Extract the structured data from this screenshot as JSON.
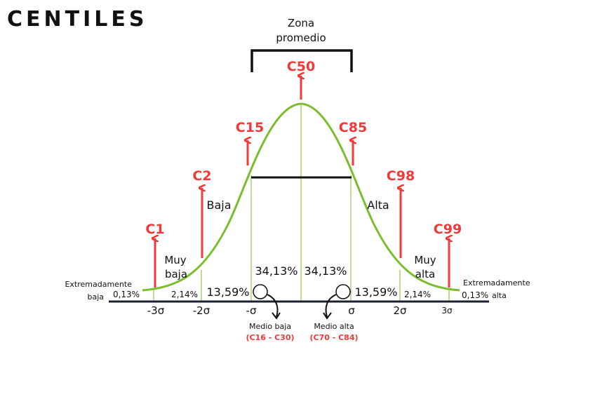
{
  "title": "CENTILES",
  "zone": {
    "line1": "Zona",
    "line2": "promedio"
  },
  "colors": {
    "curve": "#7cbd2e",
    "arrow": "#f03a3a",
    "axis": "#1c2233"
  },
  "centiles": {
    "c50": "C50",
    "c15": "C15",
    "c85": "C85",
    "c2": "C2",
    "c98": "C98",
    "c1": "C1",
    "c99": "C99"
  },
  "regions": {
    "baja": "Baja",
    "alta": "Alta",
    "muy_baja_1": "Muy",
    "muy_baja_2": "baja",
    "muy_alta_1": "Muy",
    "muy_alta_2": "alta",
    "extrem_left_1": "Extremadamente",
    "extrem_left_2": "baja",
    "extrem_right_1": "Extremadamente",
    "extrem_right_2": "alta"
  },
  "percents": {
    "p013_left": "0,13%",
    "p214_left": "2,14%",
    "p1359_left": "13,59%",
    "p3413_left": "34,13%",
    "p3413_right": "34,13%",
    "p1359_right": "13,59%",
    "p214_right": "2,14%",
    "p013_right": "0,13%"
  },
  "axis": {
    "m3": "-3σ",
    "m2": "-2σ",
    "m1": "-σ",
    "p1": "σ",
    "p2": "2σ",
    "p3": "3σ"
  },
  "medio": {
    "baja_label": "Medio baja",
    "baja_range": "(C16 - C30)",
    "alta_label": "Medio alta",
    "alta_range": "(C70 - C84)"
  }
}
